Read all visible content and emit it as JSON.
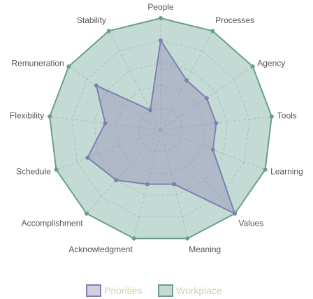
{
  "chart_data": {
    "type": "radar",
    "axes": [
      "People",
      "Processes",
      "Agency",
      "Tools",
      "Learning",
      "Values",
      "Meaning",
      "Acknowledgment",
      "Accomplishment",
      "Schedule",
      "Flexibility",
      "Remuneration",
      "Stability"
    ],
    "rmax": 10,
    "grid_levels": [
      2,
      4,
      6,
      8,
      10
    ],
    "grid": "dashed rings and spokes",
    "legend_position": "bottom-center",
    "series": [
      {
        "name": "Priorities",
        "values": [
          8,
          5,
          5,
          5,
          5,
          10,
          5,
          5,
          6,
          7,
          5,
          7,
          2
        ],
        "stroke": "#8080b0",
        "fill": "#9088b4",
        "fill_opacity": 0.4
      },
      {
        "name": "Workplace",
        "values": [
          10,
          10,
          10,
          10,
          10,
          10,
          10,
          10,
          10,
          10,
          10,
          10,
          10
        ],
        "stroke": "#6a9e8c",
        "fill": "#8ab8ac",
        "fill_opacity": 0.5
      }
    ]
  },
  "colors": {
    "grid": "#c7c7c7",
    "axis_label": "#555555",
    "legend_text": "#d6cfa8"
  }
}
